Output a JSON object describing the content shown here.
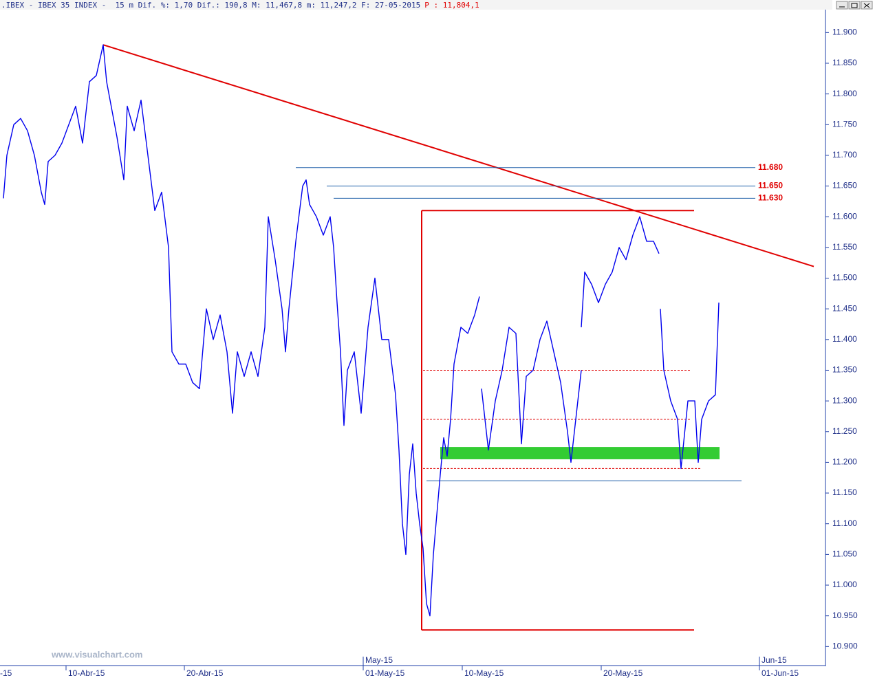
{
  "chart_data": {
    "type": "line",
    "header": ".IBEX - IBEX 35 INDEX -  15 m Dif. %: 1,70 Dif.: 190,8 M: 11,467,8 m: 11,247,2 F: 27-05-2015",
    "header_price": "P : 11,804,1",
    "watermark": "www.visualchart.com",
    "xlim": [
      0,
      119
    ],
    "ylim": [
      10869,
      11953
    ],
    "yticks": [
      {
        "value": 10900,
        "label": "10.900"
      },
      {
        "value": 10950,
        "label": "10.950"
      },
      {
        "value": 11000,
        "label": "11.000"
      },
      {
        "value": 11050,
        "label": "11.050"
      },
      {
        "value": 11100,
        "label": "11.100"
      },
      {
        "value": 11150,
        "label": "11.150"
      },
      {
        "value": 11200,
        "label": "11.200"
      },
      {
        "value": 11250,
        "label": "11.250"
      },
      {
        "value": 11300,
        "label": "11.300"
      },
      {
        "value": 11350,
        "label": "11.350"
      },
      {
        "value": 11400,
        "label": "11.400"
      },
      {
        "value": 11450,
        "label": "11.450"
      },
      {
        "value": 11500,
        "label": "11.500"
      },
      {
        "value": 11550,
        "label": "11.550"
      },
      {
        "value": 11600,
        "label": "11.600"
      },
      {
        "value": 11650,
        "label": "11.650"
      },
      {
        "value": 11700,
        "label": "11.700"
      },
      {
        "value": 11750,
        "label": "11.750"
      },
      {
        "value": 11800,
        "label": "11.800"
      },
      {
        "value": 11850,
        "label": "11.850"
      },
      {
        "value": 11900,
        "label": "11.900"
      }
    ],
    "xticks": [
      {
        "value": -0.8,
        "label": "-15"
      },
      {
        "value": 9.6,
        "label": "10-Abr-15"
      },
      {
        "value": 26.8,
        "label": "20-Abr-15"
      },
      {
        "value": 52.8,
        "label": "01-May-15"
      },
      {
        "value": 67.2,
        "label": "10-May-15"
      },
      {
        "value": 87.4,
        "label": "20-May-15"
      },
      {
        "value": 110.4,
        "label": "01-Jun-15"
      }
    ],
    "month_labels": [
      {
        "value": 52.8,
        "label": "May-15"
      },
      {
        "value": 110.4,
        "label": "Jun-15"
      }
    ],
    "series": [
      {
        "name": "IBEX 35 INDEX",
        "color": "#0000ee",
        "x": [
          0.5,
          1,
          2,
          3,
          4,
          5,
          6,
          6.5,
          7,
          8,
          9,
          10,
          11,
          12,
          13,
          14,
          15,
          15.5,
          16,
          17,
          18,
          18.5,
          19.5,
          20.5,
          21.5,
          22.5,
          23.5,
          24.5,
          25,
          26,
          27,
          28,
          29,
          30,
          31,
          32,
          33,
          33.8,
          34.5,
          35.5,
          36.5,
          37.5,
          38.5,
          39,
          40,
          41,
          41.5,
          42,
          43,
          44,
          44.5,
          45,
          46,
          47,
          48,
          48.5,
          49,
          49.5,
          50,
          50.5,
          51.5,
          52.5,
          53.5,
          54.5,
          55.5,
          56.5,
          57.5,
          58,
          58.5,
          59,
          59.5,
          60,
          60.5,
          61,
          61.5,
          62,
          62.5,
          63,
          64,
          64.5,
          65,
          65.5,
          66,
          67,
          68,
          69,
          69.7,
          null,
          70,
          71,
          72,
          73,
          74,
          75,
          75.8,
          76.5,
          77.5,
          78.5,
          79.5,
          80.5,
          81.5,
          82.5,
          83,
          83.8,
          84.5,
          null,
          84.5,
          85,
          86,
          87,
          88,
          89,
          90,
          91,
          92,
          93,
          94,
          95,
          95.8,
          null,
          96,
          96.5,
          97.5,
          98.5,
          99,
          100,
          101,
          101.5,
          102,
          103,
          104,
          104.5
        ],
        "values": [
          11630,
          11700,
          11750,
          11760,
          11740,
          11700,
          11640,
          11620,
          11690,
          11700,
          11720,
          11750,
          11780,
          11720,
          11820,
          11830,
          11880,
          11820,
          11790,
          11730,
          11660,
          11780,
          11740,
          11790,
          11700,
          11610,
          11640,
          11550,
          11380,
          11360,
          11360,
          11330,
          11320,
          11450,
          11400,
          11440,
          11380,
          11280,
          11380,
          11340,
          11380,
          11340,
          11420,
          11600,
          11530,
          11450,
          11380,
          11450,
          11560,
          11650,
          11660,
          11620,
          11600,
          11570,
          11600,
          11550,
          11460,
          11380,
          11260,
          11350,
          11380,
          11280,
          11420,
          11500,
          11400,
          11400,
          11310,
          11220,
          11100,
          11050,
          11180,
          11230,
          11150,
          11100,
          11060,
          10970,
          10950,
          11050,
          11180,
          11240,
          11210,
          11270,
          11360,
          11420,
          11410,
          11440,
          11470,
          null,
          11320,
          11220,
          11300,
          11350,
          11420,
          11410,
          11230,
          11340,
          11350,
          11400,
          11430,
          11380,
          11330,
          11250,
          11200,
          11280,
          11350,
          null,
          11420,
          11510,
          11490,
          11460,
          11490,
          11510,
          11550,
          11530,
          11570,
          11600,
          11560,
          11560,
          11540,
          null,
          11450,
          11350,
          11300,
          11270,
          11190,
          11300,
          11300,
          11200,
          11270,
          11300,
          11310,
          11460
        ]
      }
    ],
    "segments": [
      {
        "x": [
          15,
          118.3
        ],
        "values": [
          11880,
          11519
        ],
        "color": "#e00000",
        "dash": false,
        "width": 2
      },
      {
        "x": [
          61.3,
          61.3
        ],
        "values": [
          11610,
          10927
        ],
        "color": "#e00000",
        "dash": false,
        "width": 2
      },
      {
        "x": [
          61.3,
          100.9
        ],
        "values": [
          11610,
          11610
        ],
        "color": "#e00000",
        "dash": false,
        "width": 2
      },
      {
        "x": [
          61.3,
          100.9
        ],
        "values": [
          10927,
          10927
        ],
        "color": "#e00000",
        "dash": false,
        "width": 2
      },
      {
        "x": [
          61.5,
          100.5
        ],
        "values": [
          11350,
          11350
        ],
        "color": "#e00000",
        "dash": true,
        "width": 1
      },
      {
        "x": [
          61.5,
          100.5
        ],
        "values": [
          11270,
          11270
        ],
        "color": "#e00000",
        "dash": true,
        "width": 1
      },
      {
        "x": [
          61.5,
          102
        ],
        "values": [
          11190,
          11190
        ],
        "color": "#e00000",
        "dash": true,
        "width": 1
      },
      {
        "x": [
          62,
          107.8
        ],
        "values": [
          11170,
          11170
        ],
        "color": "#1f5fa8",
        "dash": false,
        "width": 1
      }
    ],
    "levels": [
      {
        "value": 11680,
        "label": "11.680",
        "x": [
          43,
          109.8
        ],
        "color": "#1f5fa8",
        "label_color": "#e00000"
      },
      {
        "value": 11650,
        "label": "11.650",
        "x": [
          47.5,
          109.8
        ],
        "color": "#1f5fa8",
        "label_color": "#e00000"
      },
      {
        "value": 11630,
        "label": "11.630",
        "x": [
          48.5,
          109.8
        ],
        "color": "#1f5fa8",
        "label_color": "#e00000"
      }
    ],
    "band": {
      "x": [
        64,
        104.6
      ],
      "values": [
        11205,
        11225
      ],
      "color": "#33cc33"
    }
  }
}
